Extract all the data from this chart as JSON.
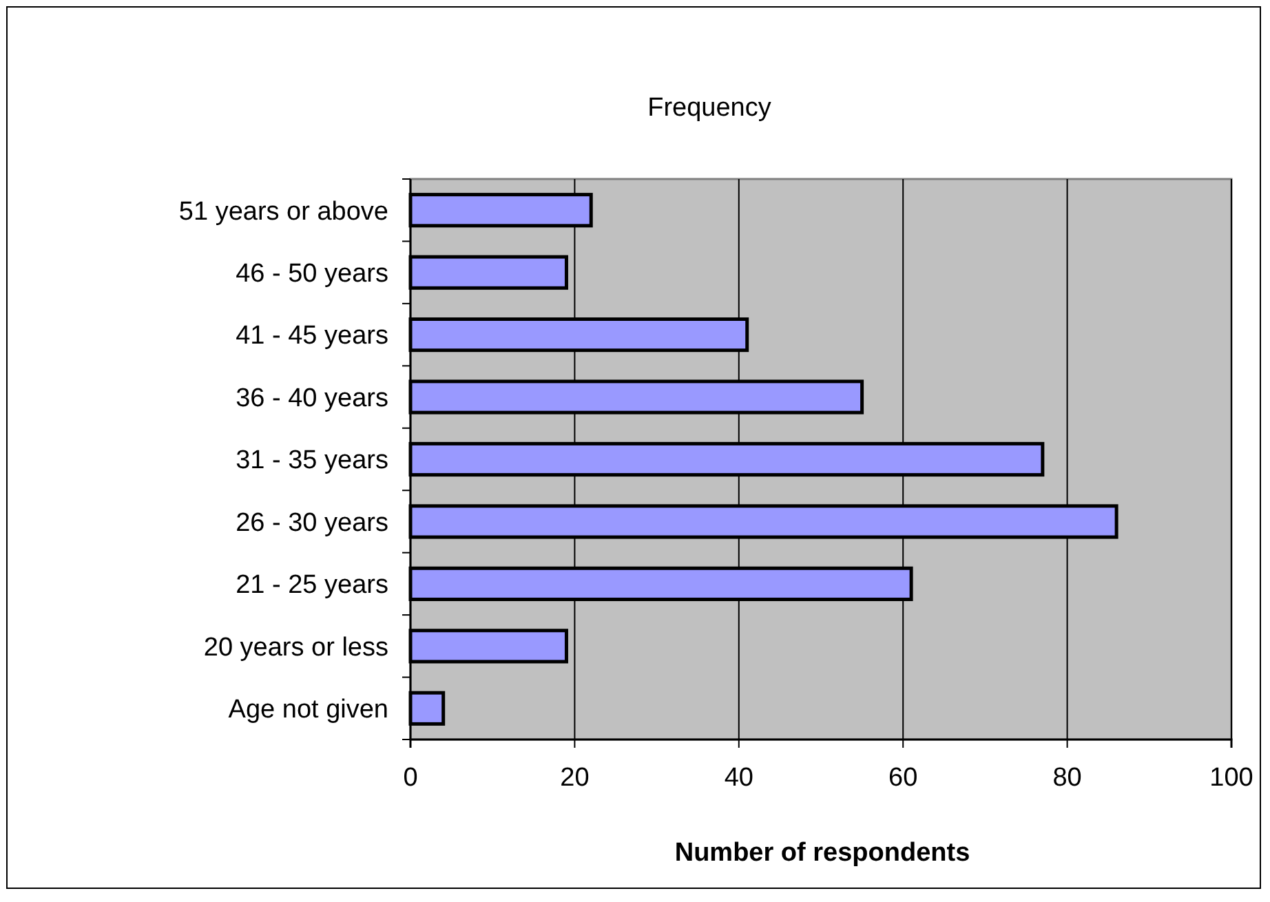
{
  "chart_data": {
    "type": "bar",
    "orientation": "horizontal",
    "title": "Frequency",
    "xlabel": "Number of respondents",
    "categories": [
      "51 years or above",
      "46 - 50 years",
      "41 - 45 years",
      "36 - 40 years",
      "31 - 35 years",
      "26 - 30 years",
      "21 - 25 years",
      "20 years or less",
      "Age not given"
    ],
    "values": [
      22,
      19,
      41,
      55,
      77,
      86,
      61,
      19,
      4
    ],
    "color": "#9999ff",
    "xlim": [
      0,
      100
    ],
    "xticks": [
      0,
      20,
      40,
      60,
      80,
      100
    ],
    "grid": "x"
  }
}
